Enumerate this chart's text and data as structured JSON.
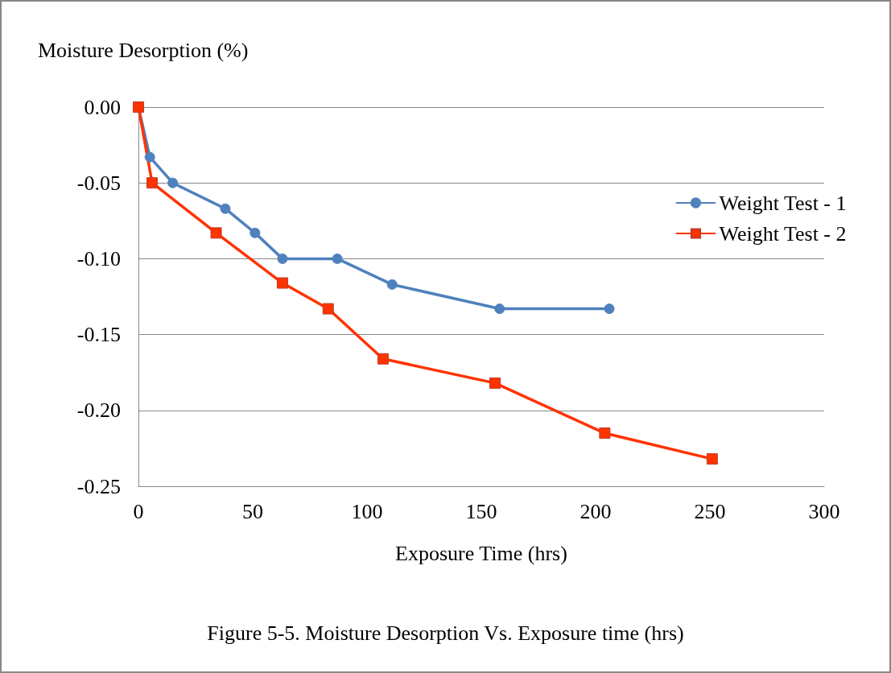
{
  "chart_data": {
    "type": "line",
    "title": "Figure 5-5. Moisture Desorption Vs. Exposure time (hrs)",
    "xlabel": "Exposure Time (hrs)",
    "ylabel": "Moisture Desorption (%)",
    "series": [
      {
        "name": "Weight Test - 1",
        "color": "#4f81bd",
        "marker": "circle",
        "x": [
          0,
          5,
          15,
          38,
          51,
          63,
          87,
          111,
          158,
          206
        ],
        "values": [
          0,
          -0.033,
          -0.05,
          -0.067,
          -0.083,
          -0.1,
          -0.1,
          -0.117,
          -0.133,
          -0.133
        ]
      },
      {
        "name": "Weight Test - 2",
        "color": "#ff3300",
        "marker": "square",
        "x": [
          0,
          6,
          34,
          63,
          83,
          107,
          156,
          204,
          251
        ],
        "values": [
          0,
          -0.05,
          -0.083,
          -0.116,
          -0.133,
          -0.166,
          -0.182,
          -0.215,
          -0.232
        ]
      }
    ],
    "xlim": [
      0,
      300
    ],
    "xticks": [
      0,
      50,
      100,
      150,
      200,
      250,
      300
    ],
    "ylim": [
      -0.25,
      0
    ],
    "yticks": [
      -0.25,
      {
        "value": -0.2,
        "label": "-0.20"
      },
      -0.15,
      {
        "value": -0.1,
        "label": "-0.10"
      },
      -0.05,
      {
        "value": 0,
        "label": "0.00"
      }
    ],
    "grid": "y",
    "legend": "right",
    "line_style": "solid"
  }
}
